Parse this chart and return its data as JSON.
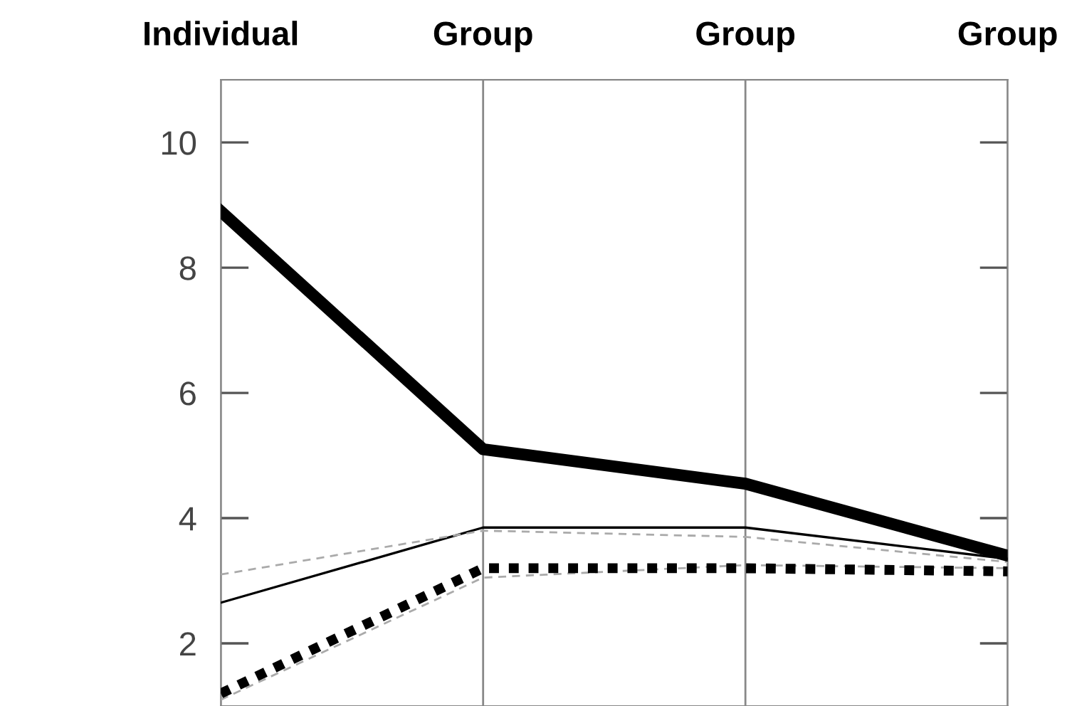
{
  "chart_data": {
    "type": "line",
    "categories": [
      "Individual",
      "Group",
      "Group",
      "Group"
    ],
    "series": [
      {
        "color": "#000000",
        "line_style": "solid",
        "values": [
          8.9,
          5.1,
          4.55,
          3.4
        ]
      },
      {
        "color": "#000000",
        "line_style": "solid",
        "values": [
          2.65,
          3.85,
          3.85,
          3.35
        ]
      },
      {
        "color": "#aaaaaa",
        "line_style": "dashed",
        "values": [
          3.1,
          3.8,
          3.7,
          3.3
        ]
      },
      {
        "color": "#aaaaaa",
        "line_style": "dashed",
        "values": [
          1.1,
          3.05,
          3.25,
          3.2
        ]
      },
      {
        "color": "#000000",
        "line_style": "dotted",
        "values": [
          1.2,
          3.2,
          3.2,
          3.15
        ]
      }
    ],
    "ylim": [
      1,
      11
    ],
    "yticks": [
      2,
      4,
      6,
      8,
      10
    ],
    "grid": "x",
    "marker": "none",
    "legend": false
  }
}
